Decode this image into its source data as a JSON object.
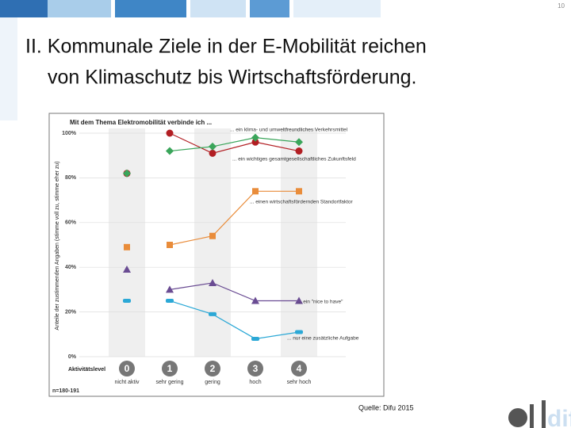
{
  "slide": {
    "page_number": "10",
    "title_line1": "II. Kommunale Ziele in der E-Mobilität reichen",
    "title_line2": "von Klimaschutz bis Wirtschaftsförderung.",
    "source": "Quelle: Difu 2015",
    "logo": "difu"
  },
  "chart_data": {
    "type": "line",
    "title": "Mit dem Thema Elektromobilität verbinde ich ...",
    "y_label": "Anteile der zustimmenden Angaben (stimme voll zu, stimme eher zu)",
    "x_label": "Aktivitätslevel",
    "note": "n=180-191",
    "levels": [
      "0",
      "1",
      "2",
      "3",
      "4"
    ],
    "categories": [
      "nicht aktiv",
      "sehr gering",
      "gering",
      "hoch",
      "sehr hoch"
    ],
    "ylim": [
      0,
      100
    ],
    "yticks": [
      {
        "value": 0,
        "label": "0%"
      },
      {
        "value": 20,
        "label": "20%"
      },
      {
        "value": 40,
        "label": "40%"
      },
      {
        "value": 60,
        "label": "60%"
      },
      {
        "value": 80,
        "label": "80%"
      },
      {
        "value": 100,
        "label": "100%"
      }
    ],
    "series": [
      {
        "name": "... ein klima- und umweltfreundliches Verkehrsmittel",
        "color": "#b21e23",
        "marker": "circle",
        "values": [
          82,
          100,
          91,
          96,
          92
        ]
      },
      {
        "name": "... ein wichtiges gesamtgesellschaftliches Zukunftsfeld",
        "color": "#3aa55a",
        "marker": "diamond",
        "values": [
          82,
          92,
          94,
          98,
          96
        ]
      },
      {
        "name": "... einen wirtschaftsfördernden Standortfaktor",
        "color": "#e98c3a",
        "marker": "square",
        "values": [
          49,
          50,
          54,
          74,
          74
        ]
      },
      {
        "name": "... ein \"nice to have\"",
        "color": "#6a4c93",
        "marker": "triangle",
        "values": [
          39,
          30,
          33,
          25,
          25
        ]
      },
      {
        "name": "... nur eine zusätzliche Aufgabe",
        "color": "#2ba8d6",
        "marker": "dash",
        "values": [
          25,
          25,
          19,
          8,
          11
        ]
      }
    ]
  }
}
